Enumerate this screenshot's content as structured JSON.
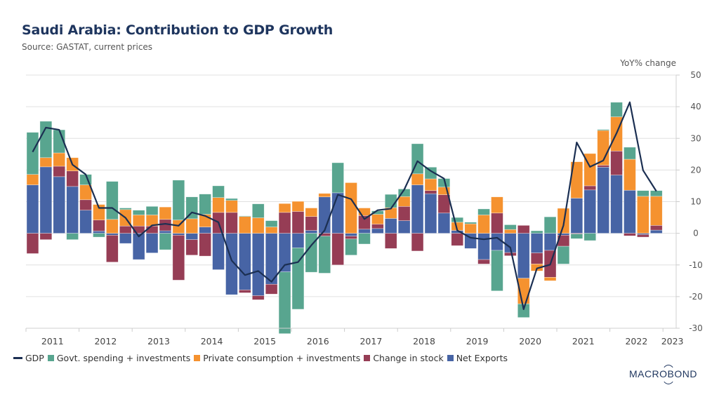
{
  "header": {
    "title": "Saudi Arabia: Contribution to GDP Growth",
    "subtitle": "Source: GASTAT, current prices",
    "unit_label": "YoY% change"
  },
  "footer": {
    "logo_text": "MACROBOND"
  },
  "colors": {
    "gdp": "#1b2f52",
    "govt": "#58a58f",
    "private": "#f5922f",
    "stock": "#963d55",
    "net_exports": "#4764a5"
  },
  "chart_data": {
    "type": "bar",
    "subtype": "stacked bar with line overlay",
    "title": "Saudi Arabia: Contribution to GDP Growth",
    "subtitle": "Source: GASTAT, current prices",
    "xlabel": "",
    "ylabel": "YoY% change",
    "ylim": [
      -30,
      50
    ],
    "yticks": [
      50,
      40,
      30,
      20,
      10,
      0,
      -10,
      -20,
      -30
    ],
    "grid": true,
    "y_axis_side": "right",
    "legend_position": "bottom-left",
    "year_labels": [
      "2011",
      "2012",
      "2013",
      "2014",
      "2015",
      "2016",
      "2017",
      "2018",
      "2019",
      "2020",
      "2021",
      "2022",
      "2023"
    ],
    "periods": [
      "2011Q1",
      "2011Q2",
      "2011Q3",
      "2011Q4",
      "2012Q1",
      "2012Q2",
      "2012Q3",
      "2012Q4",
      "2013Q1",
      "2013Q2",
      "2013Q3",
      "2013Q4",
      "2014Q1",
      "2014Q2",
      "2014Q3",
      "2014Q4",
      "2015Q1",
      "2015Q2",
      "2015Q3",
      "2015Q4",
      "2016Q1",
      "2016Q2",
      "2016Q3",
      "2016Q4",
      "2017Q1",
      "2017Q2",
      "2017Q3",
      "2017Q4",
      "2018Q1",
      "2018Q2",
      "2018Q3",
      "2018Q4",
      "2019Q1",
      "2019Q2",
      "2019Q3",
      "2019Q4",
      "2020Q1",
      "2020Q2",
      "2020Q3",
      "2020Q4",
      "2021Q1",
      "2021Q2",
      "2021Q3",
      "2021Q4",
      "2022Q1",
      "2022Q2",
      "2022Q3",
      "2022Q4"
    ],
    "legend": [
      "GDP",
      "Govt. spending + investments",
      "Private consumption + investments",
      "Change in stock",
      "Net Exports"
    ],
    "series": [
      {
        "name": "Net Exports",
        "key": "net_exports",
        "type": "bar",
        "values": [
          15.3,
          21.0,
          17.9,
          14.8,
          7.3,
          0.7,
          -0.6,
          -3.2,
          -8.3,
          -6.2,
          0.8,
          -0.6,
          -2.0,
          2.0,
          -11.5,
          -19.4,
          -17.9,
          -19.7,
          -16.1,
          -12.2,
          -4.6,
          0.9,
          11.5,
          12.8,
          -0.9,
          1.3,
          1.5,
          4.7,
          4.0,
          15.3,
          12.5,
          6.4,
          0.9,
          -4.8,
          -8.3,
          -5.4,
          -6.1,
          -14.2,
          -6.2,
          -5.4,
          -0.6,
          11.1,
          13.7,
          20.9,
          18.4,
          13.6,
          -0.4,
          1.0
        ]
      },
      {
        "name": "Change in stock",
        "key": "stock",
        "type": "bar",
        "values": [
          -6.4,
          -2.0,
          3.3,
          4.9,
          3.3,
          3.5,
          -8.5,
          2.3,
          2.3,
          2.3,
          3.6,
          -14.2,
          -4.9,
          -7.2,
          6.6,
          6.6,
          -0.9,
          -1.3,
          -3.1,
          6.6,
          6.9,
          4.4,
          -0.9,
          -10.0,
          -0.9,
          4.3,
          1.4,
          -4.8,
          4.5,
          -5.6,
          1.0,
          5.8,
          -3.9,
          0.0,
          -1.4,
          6.4,
          -1.0,
          2.5,
          -3.5,
          -8.5,
          -3.5,
          -0.2,
          1.3,
          0.6,
          7.6,
          -0.8,
          -0.8,
          1.5
        ]
      },
      {
        "name": "Private consumption + investments",
        "key": "private",
        "type": "bar",
        "values": [
          3.3,
          2.9,
          4.2,
          4.2,
          4.7,
          4.9,
          4.4,
          5.2,
          3.5,
          3.5,
          3.9,
          4.2,
          4.6,
          4.0,
          4.7,
          3.8,
          5.3,
          4.9,
          2.0,
          2.8,
          3.2,
          2.7,
          1.1,
          0.0,
          16.0,
          2.4,
          3.1,
          3.4,
          3.1,
          3.5,
          3.7,
          2.4,
          2.6,
          3.0,
          5.8,
          5.1,
          1.2,
          -8.1,
          -2.2,
          -1.1,
          7.9,
          11.5,
          10.2,
          11.0,
          10.8,
          9.8,
          11.7,
          9.2
        ]
      },
      {
        "name": "Govt. spending + investments",
        "key": "govt",
        "type": "bar",
        "values": [
          13.3,
          11.5,
          7.3,
          -2.0,
          3.3,
          -1.2,
          12.0,
          0.5,
          1.5,
          2.7,
          -5.2,
          12.6,
          6.9,
          6.4,
          3.7,
          0.6,
          0.2,
          4.4,
          2.0,
          -19.5,
          -19.4,
          -12.3,
          -11.7,
          9.5,
          -5.1,
          -3.4,
          1.1,
          4.2,
          2.4,
          9.5,
          3.7,
          2.7,
          1.5,
          0.5,
          1.9,
          -12.8,
          1.5,
          -4.3,
          0.8,
          5.2,
          -5.6,
          -1.5,
          -2.3,
          0.3,
          4.6,
          3.8,
          1.8,
          1.8
        ]
      },
      {
        "name": "GDP",
        "key": "gdp",
        "type": "line",
        "values": [
          25.7,
          33.4,
          32.7,
          21.7,
          18.6,
          8.0,
          8.0,
          4.9,
          -1.0,
          2.5,
          3.0,
          2.4,
          6.6,
          5.5,
          3.5,
          -8.6,
          -13.2,
          -11.9,
          -15.3,
          -10.0,
          -9.1,
          -3.8,
          0.9,
          12.2,
          10.8,
          4.5,
          7.3,
          7.8,
          13.8,
          22.8,
          19.7,
          17.3,
          0.9,
          -1.4,
          -1.9,
          -1.4,
          -4.5,
          -24.0,
          -11.1,
          -9.9,
          2.5,
          28.7,
          21.0,
          23.0,
          31.6,
          41.4,
          19.9,
          13.3
        ]
      }
    ]
  }
}
